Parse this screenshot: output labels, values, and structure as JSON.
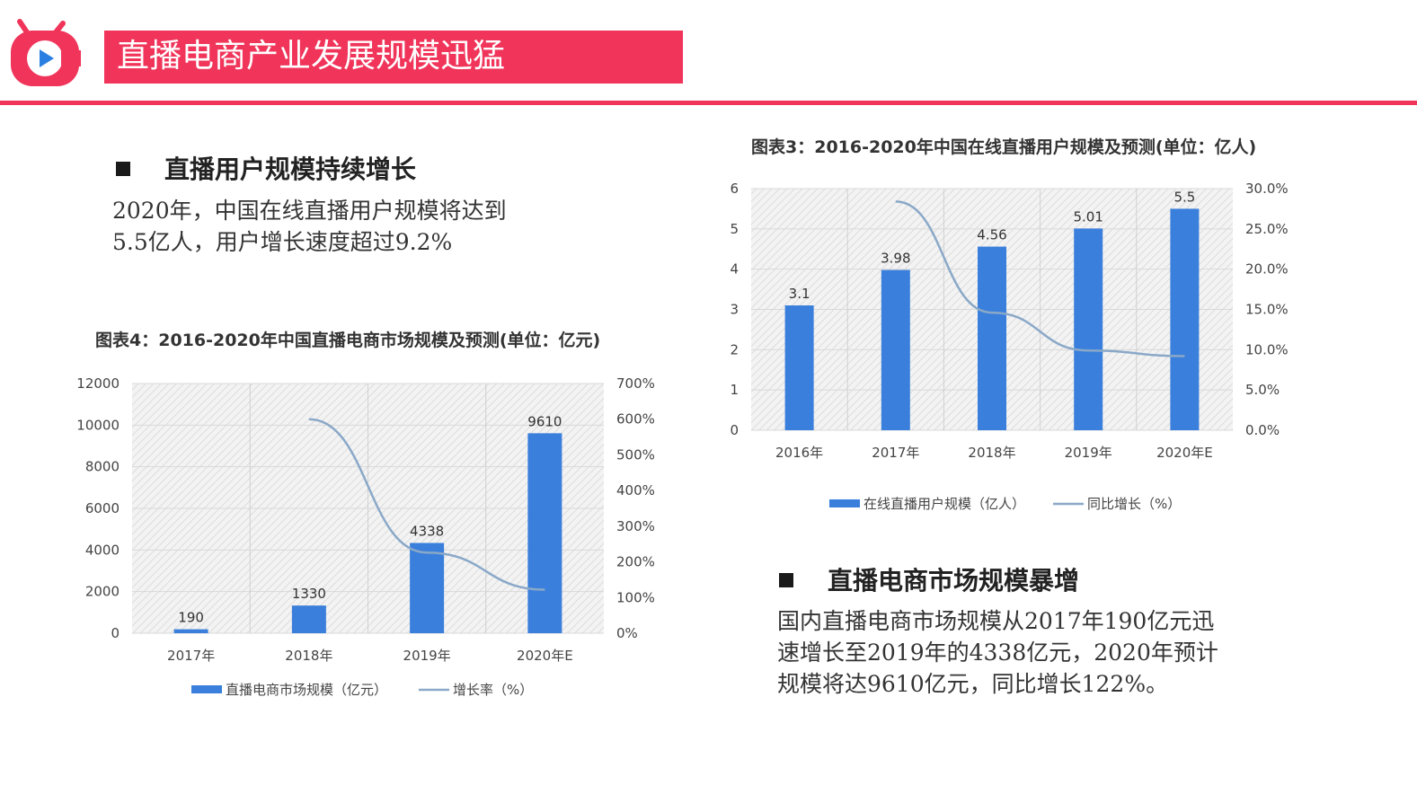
{
  "header": {
    "title": "直播电商产业发展规模迅猛"
  },
  "section1": {
    "heading": "直播用户规模持续增长",
    "body": "2020年，中国在线直播用户规模将达到\n5.5亿人，用户增长速度超过9.2%"
  },
  "section2": {
    "heading": "直播电商市场规模暴增",
    "body": "国内直播电商市场规模从2017年190亿元迅\n速增长至2019年的4338亿元，2020年预计\n规模将达9610亿元，同比增长122%。"
  },
  "colors": {
    "brand": "#f0345a",
    "bar": "#3a7fdb",
    "line": "#8aa8c8"
  },
  "chart_data": [
    {
      "type": "bar",
      "title": "图表4：2016-2020年中国直播电商市场规模及预测(单位：亿元)",
      "categories": [
        "2017年",
        "2018年",
        "2019年",
        "2020年E"
      ],
      "series": [
        {
          "name": "直播电商市场规模（亿元）",
          "type": "bar",
          "values": [
            190,
            1330,
            4338,
            9610
          ],
          "axis": "left"
        },
        {
          "name": "增长率（%）",
          "type": "line",
          "values": [
            null,
            600,
            226,
            122
          ],
          "axis": "right"
        }
      ],
      "data_labels": [
        "190",
        "1330",
        "4338",
        "9610"
      ],
      "y_ticks_left": [
        "0",
        "2000",
        "4000",
        "6000",
        "8000",
        "10000",
        "12000"
      ],
      "y_ticks_right": [
        "0%",
        "100%",
        "200%",
        "300%",
        "400%",
        "500%",
        "600%",
        "700%"
      ],
      "ylim_left": [
        0,
        12000
      ],
      "ylim_right": [
        0,
        700
      ],
      "grid": true,
      "legend_position": "bottom"
    },
    {
      "type": "bar",
      "title": "图表3：2016-2020年中国在线直播用户规模及预测(单位：亿人)",
      "categories": [
        "2016年",
        "2017年",
        "2018年",
        "2019年",
        "2020年E"
      ],
      "series": [
        {
          "name": "在线直播用户规模（亿人）",
          "type": "bar",
          "values": [
            3.1,
            3.98,
            4.56,
            5.01,
            5.5
          ],
          "axis": "left"
        },
        {
          "name": "同比增长（%）",
          "type": "line",
          "values": [
            null,
            28.4,
            14.6,
            9.9,
            9.2
          ],
          "axis": "right"
        }
      ],
      "data_labels": [
        "3.1",
        "3.98",
        "4.56",
        "5.01",
        "5.5"
      ],
      "y_ticks_left": [
        "0",
        "1",
        "2",
        "3",
        "4",
        "5",
        "6"
      ],
      "y_ticks_right": [
        "0.0%",
        "5.0%",
        "10.0%",
        "15.0%",
        "20.0%",
        "25.0%",
        "30.0%"
      ],
      "ylim_left": [
        0,
        6
      ],
      "ylim_right": [
        0,
        30
      ],
      "grid": true,
      "legend_position": "bottom"
    }
  ]
}
